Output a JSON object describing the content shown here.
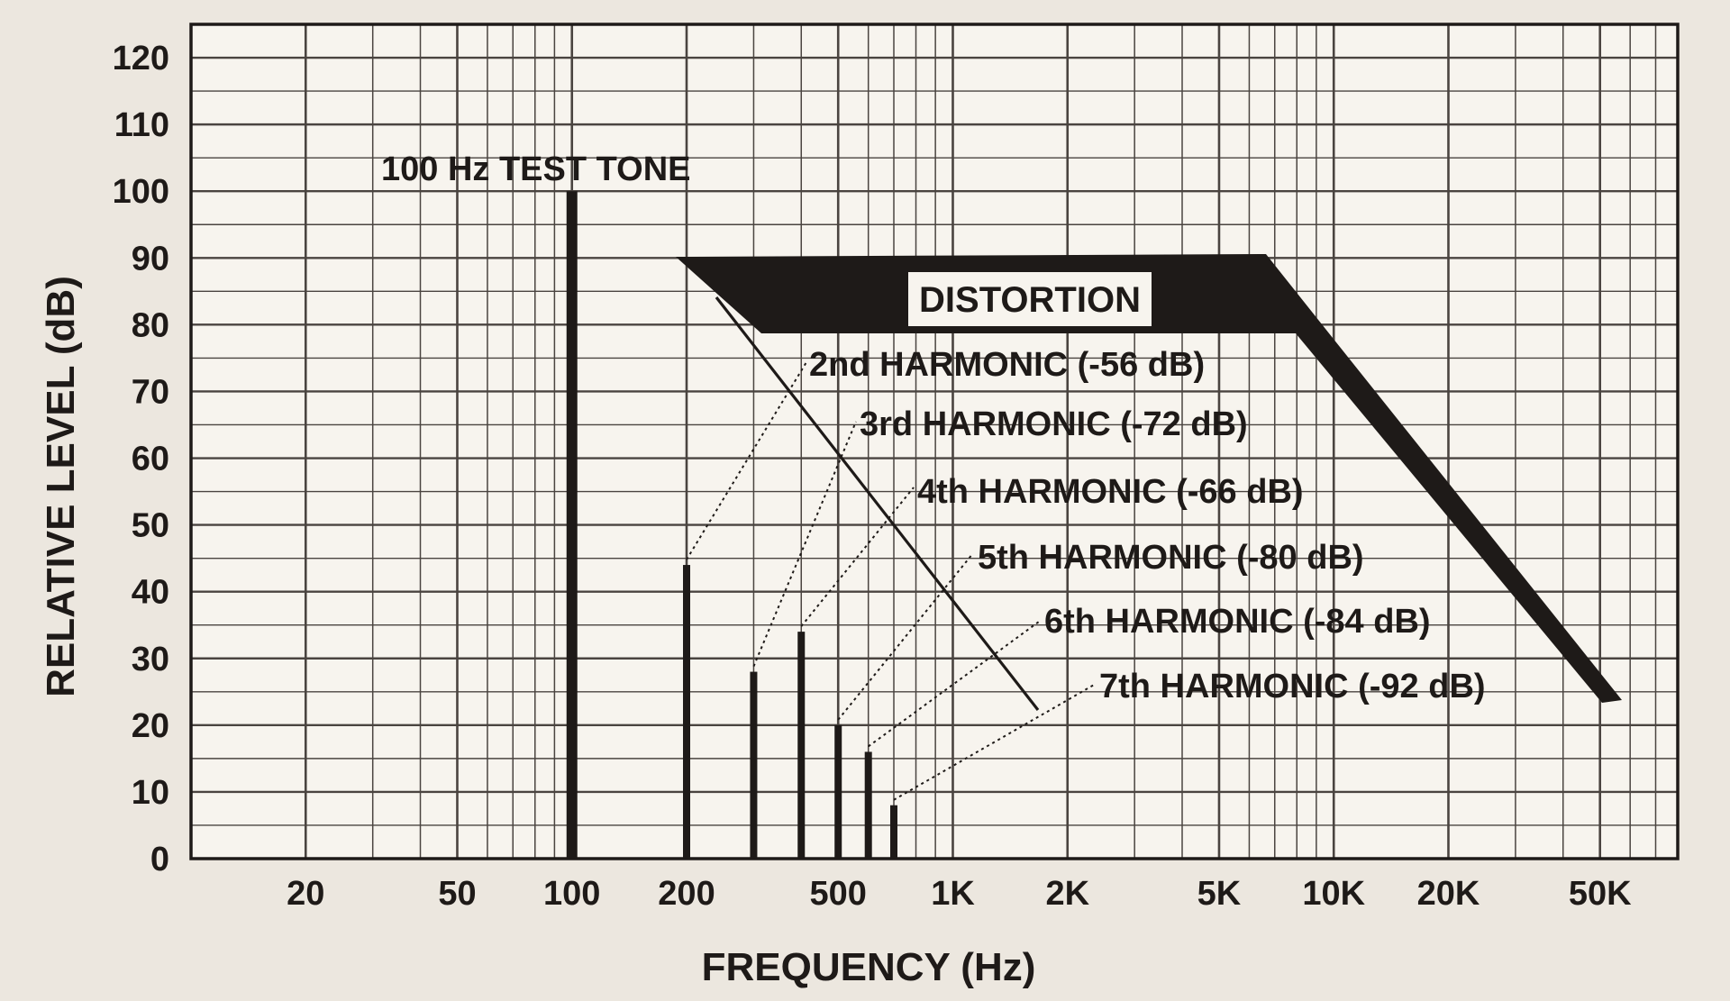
{
  "chart_data": {
    "type": "bar",
    "xscale": "log",
    "xlim": [
      10,
      80000
    ],
    "ylim": [
      0,
      125
    ],
    "grid": true,
    "xlabel": "FREQUENCY (Hz)",
    "ylabel": "RELATIVE LEVEL (dB)",
    "x_ticks": [
      {
        "value": 20,
        "label": "20"
      },
      {
        "value": 50,
        "label": "50"
      },
      {
        "value": 100,
        "label": "100"
      },
      {
        "value": 200,
        "label": "200"
      },
      {
        "value": 500,
        "label": "500"
      },
      {
        "value": 1000,
        "label": "1K"
      },
      {
        "value": 2000,
        "label": "2K"
      },
      {
        "value": 5000,
        "label": "5K"
      },
      {
        "value": 10000,
        "label": "10K"
      },
      {
        "value": 20000,
        "label": "20K"
      },
      {
        "value": 50000,
        "label": "50K"
      }
    ],
    "y_ticks": [
      {
        "value": 0,
        "label": "0"
      },
      {
        "value": 10,
        "label": "10"
      },
      {
        "value": 20,
        "label": "20"
      },
      {
        "value": 30,
        "label": "30"
      },
      {
        "value": 40,
        "label": "40"
      },
      {
        "value": 50,
        "label": "50"
      },
      {
        "value": 60,
        "label": "60"
      },
      {
        "value": 70,
        "label": "70"
      },
      {
        "value": 80,
        "label": "80"
      },
      {
        "value": 90,
        "label": "90"
      },
      {
        "value": 100,
        "label": "100"
      },
      {
        "value": 110,
        "label": "110"
      },
      {
        "value": 120,
        "label": "120"
      }
    ],
    "test_tone": {
      "frequency": 100,
      "level": 100,
      "label": "100 Hz TEST TONE"
    },
    "harmonics": [
      {
        "frequency": 200,
        "level": 44,
        "label": "2nd HARMONIC (-56 dB)"
      },
      {
        "frequency": 300,
        "level": 28,
        "label": "3rd HARMONIC (-72 dB)"
      },
      {
        "frequency": 400,
        "level": 34,
        "label": "4th HARMONIC (-66 dB)"
      },
      {
        "frequency": 500,
        "level": 20,
        "label": "5th HARMONIC (-80 dB)"
      },
      {
        "frequency": 600,
        "level": 16,
        "label": "6th HARMONIC (-84 dB)"
      },
      {
        "frequency": 700,
        "level": 8,
        "label": "7th HARMONIC (-92 dB)"
      }
    ],
    "distortion_label": "DISTORTION"
  },
  "colors": {
    "ink": "#1e1a18",
    "background": "#ece7df",
    "plot_background": "#f7f4ee",
    "grid": "#4a4440"
  }
}
